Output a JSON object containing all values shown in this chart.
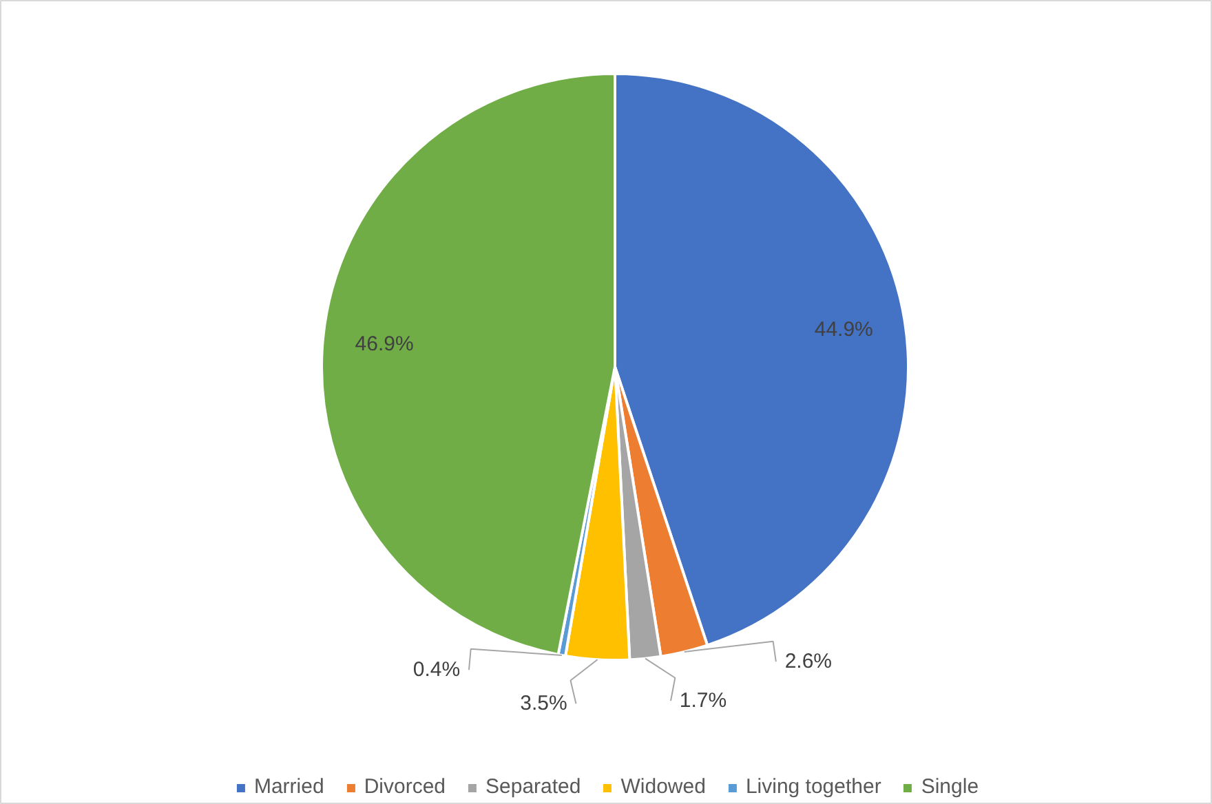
{
  "chart_data": {
    "type": "pie",
    "categories": [
      "Married",
      "Divorced",
      "Separated",
      "Widowed",
      "Living together",
      "Single"
    ],
    "values": [
      44.9,
      2.6,
      1.7,
      3.5,
      0.4,
      46.9
    ],
    "colors": [
      "#4472c4",
      "#ed7d31",
      "#a5a5a5",
      "#ffc000",
      "#5b9bd5",
      "#70ad47"
    ],
    "value_labels": [
      "44.9%",
      "2.6%",
      "1.7%",
      "3.5%",
      "0.4%",
      "46.9%"
    ],
    "legend": "bottom"
  }
}
